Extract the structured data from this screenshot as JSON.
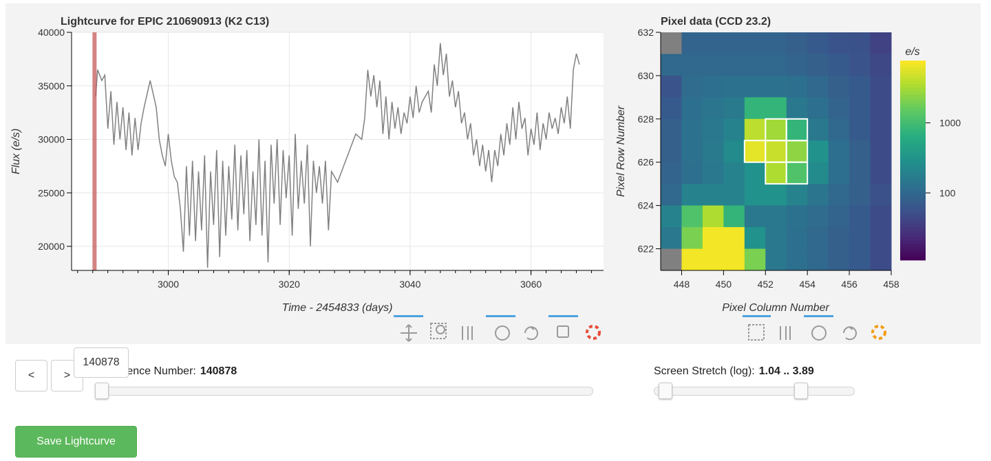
{
  "chart_data": [
    {
      "type": "line",
      "title": "Lightcurve for EPIC 210690913 (K2 C13)",
      "x_label": "Time - 2454833 (days)",
      "y_label": "Flux (e/s)",
      "color": "#808080",
      "x": [
        2988,
        2988.3,
        2989,
        2989.5,
        2990,
        2990.5,
        2991,
        2991.5,
        2992,
        2992.5,
        2993,
        2993.5,
        2994,
        2994.5,
        2995,
        2995.5,
        2996,
        2997,
        2998,
        2998.5,
        2999,
        2999.5,
        3000,
        3000.5,
        3001,
        3001.5,
        3002,
        3002.5,
        3003,
        3003.5,
        3004,
        3004.5,
        3005,
        3005.5,
        3006,
        3006.5,
        3007,
        3007.5,
        3008,
        3008.5,
        3009,
        3009.5,
        3010,
        3010.5,
        3011,
        3011.5,
        3012,
        3012.5,
        3013,
        3013.5,
        3014,
        3014.5,
        3015,
        3015.5,
        3016,
        3016.5,
        3017,
        3017.5,
        3018,
        3018.5,
        3019,
        3019.5,
        3020,
        3020.5,
        3021,
        3021.5,
        3022,
        3022.5,
        3023,
        3023.5,
        3024,
        3024.5,
        3025,
        3025.5,
        3026,
        3026.5,
        3027,
        3028,
        3029,
        3030,
        3031,
        3032,
        3032.5,
        3033,
        3033.5,
        3034,
        3034.5,
        3035,
        3035.5,
        3036,
        3036.5,
        3037,
        3037.5,
        3038,
        3038.5,
        3039,
        3039.5,
        3040,
        3040.5,
        3041,
        3041.5,
        3042,
        3043,
        3043.5,
        3044,
        3044.5,
        3045,
        3045.5,
        3046,
        3046.5,
        3047,
        3047.5,
        3048,
        3048.5,
        3049,
        3049.5,
        3050,
        3050.5,
        3051,
        3051.5,
        3052,
        3052.5,
        3053,
        3053.5,
        3054,
        3054.5,
        3055,
        3055.5,
        3056,
        3056.5,
        3057,
        3057.5,
        3058,
        3058.5,
        3059,
        3059.5,
        3060,
        3060.5,
        3061,
        3061.5,
        3062,
        3062.5,
        3063,
        3063.5,
        3064,
        3064.5,
        3065,
        3065.5,
        3066,
        3066.5,
        3067,
        3067.5,
        3068
      ],
      "values": [
        34000,
        36500,
        35500,
        36000,
        31000,
        34500,
        29500,
        33500,
        30000,
        33000,
        29000,
        32500,
        28500,
        32000,
        29000,
        31500,
        33000,
        35500,
        33000,
        30000,
        28500,
        27500,
        30500,
        28000,
        26500,
        26000,
        23500,
        19500,
        27500,
        21000,
        28000,
        20500,
        27000,
        21500,
        28500,
        18000,
        27000,
        22000,
        29000,
        19000,
        28000,
        21000,
        27500,
        22500,
        29500,
        21500,
        28500,
        23000,
        29000,
        20500,
        27000,
        22000,
        30000,
        21000,
        28000,
        18500,
        29500,
        24000,
        30000,
        22000,
        29000,
        24500,
        28500,
        21000,
        30500,
        23500,
        28000,
        24000,
        29500,
        20000,
        28000,
        25000,
        27500,
        24000,
        28000,
        21500,
        27000,
        26000,
        27500,
        29000,
        30500,
        30000,
        32000,
        36500,
        34000,
        36000,
        33000,
        35500,
        30500,
        34000,
        30000,
        33500,
        31000,
        33000,
        30500,
        32500,
        31500,
        34000,
        32000,
        35000,
        32500,
        33500,
        34500,
        32500,
        37000,
        35000,
        39000,
        36000,
        38000,
        34000,
        35500,
        33000,
        34500,
        31500,
        32500,
        30000,
        31500,
        28500,
        30000,
        27500,
        29500,
        27000,
        29000,
        26000,
        29000,
        27500,
        30500,
        28500,
        31500,
        29500,
        33000,
        30000,
        33500,
        31000,
        32000,
        28500,
        31000,
        29500,
        32500,
        29000,
        31500,
        30000,
        32500,
        31000,
        32000,
        30500,
        33000,
        31500,
        34000,
        31000,
        36500,
        38000,
        37000
      ],
      "xlim": [
        2984,
        3072
      ],
      "ylim": [
        17750,
        40000
      ],
      "xticks": [
        3000,
        3020,
        3040,
        3060
      ],
      "yticks": [
        20000,
        25000,
        30000,
        35000,
        40000
      ],
      "grid": true,
      "marker_x": 2987.8,
      "marker_color": "#c0504d"
    },
    {
      "type": "heatmap",
      "title": "Pixel data (CCD 23.2)",
      "x_label": "Pixel Column Number",
      "y_label": "Pixel Row Number",
      "x": [
        447.5,
        448.5,
        449.5,
        450.5,
        451.5,
        452.5,
        453.5,
        454.5,
        455.5,
        456.5,
        457.5
      ],
      "y": [
        631.5,
        630.5,
        629.5,
        628.5,
        627.5,
        626.5,
        625.5,
        624.5,
        623.5,
        622.5,
        621.5
      ],
      "values": [
        [
          null,
          90,
          90,
          90,
          90,
          90,
          80,
          70,
          60,
          55,
          40
        ],
        [
          100,
          100,
          100,
          100,
          100,
          100,
          90,
          80,
          70,
          60,
          45
        ],
        [
          60,
          110,
          120,
          130,
          130,
          130,
          120,
          100,
          80,
          70,
          50
        ],
        [
          70,
          120,
          140,
          160,
          800,
          800,
          150,
          120,
          90,
          70,
          50
        ],
        [
          80,
          130,
          150,
          200,
          4000,
          3000,
          800,
          150,
          100,
          70,
          50
        ],
        [
          80,
          130,
          160,
          250,
          6000,
          4500,
          2500,
          300,
          120,
          80,
          50
        ],
        [
          90,
          120,
          150,
          200,
          300,
          3500,
          1200,
          250,
          120,
          80,
          50
        ],
        [
          100,
          200,
          200,
          200,
          300,
          300,
          200,
          140,
          100,
          80,
          55
        ],
        [
          200,
          1200,
          3500,
          800,
          150,
          150,
          130,
          110,
          90,
          70,
          50
        ],
        [
          150,
          2000,
          7000,
          7000,
          300,
          150,
          120,
          100,
          80,
          70,
          50
        ],
        [
          null,
          7000,
          7000,
          7000,
          2000,
          150,
          120,
          100,
          80,
          70,
          50
        ]
      ],
      "xlim": [
        447,
        458
      ],
      "ylim": [
        621,
        632
      ],
      "xticks": [
        448,
        450,
        452,
        454,
        456,
        458
      ],
      "yticks": [
        622,
        624,
        626,
        628,
        630,
        632
      ],
      "log_range": [
        1.04,
        3.89
      ],
      "null_color": "#808080",
      "palette": [
        "#440154",
        "#472d7b",
        "#3b528b",
        "#2c728e",
        "#21918c",
        "#28ae80",
        "#5ec962",
        "#addc30",
        "#fde725"
      ],
      "colorbar_title": "e/s",
      "colorbar_ticks": [
        100,
        1000
      ],
      "aperture": [
        [
          452.5,
          627.5
        ],
        [
          453.5,
          627.5
        ],
        [
          451.5,
          626.5
        ],
        [
          452.5,
          626.5
        ],
        [
          453.5,
          626.5
        ],
        [
          452.5,
          625.5
        ],
        [
          453.5,
          625.5
        ]
      ]
    }
  ],
  "controls": {
    "prev": "<",
    "next": ">",
    "tooltip": "140878",
    "cadence_label": "Cadence Number:",
    "cadence_value": "140878",
    "stretch_label": "Screen Stretch (log):",
    "stretch_value": "1.04 .. 3.89",
    "save": "Save Lightcurve"
  }
}
